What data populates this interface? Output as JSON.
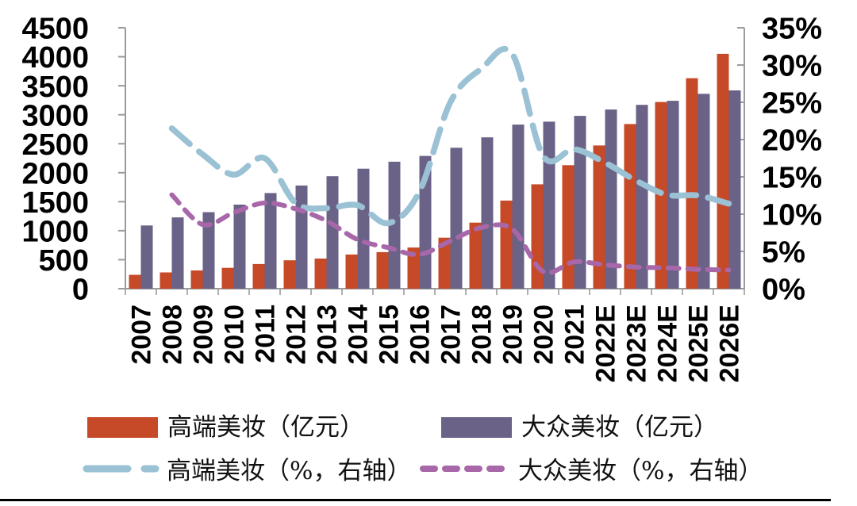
{
  "chart_data": {
    "type": "bar-line-combo",
    "categories": [
      "2007",
      "2008",
      "2009",
      "2010",
      "2011",
      "2012",
      "2013",
      "2014",
      "2015",
      "2016",
      "2017",
      "2018",
      "2019",
      "2020",
      "2021",
      "2022E",
      "2023E",
      "2024E",
      "2025E",
      "2026E"
    ],
    "series": [
      {
        "name": "高端美妆（亿元）",
        "type": "bar",
        "axis": "left",
        "color": "#C64928",
        "values": [
          240,
          280,
          315,
          360,
          425,
          490,
          520,
          590,
          630,
          710,
          880,
          1140,
          1520,
          1800,
          2130,
          2470,
          2840,
          3220,
          3630,
          4050
        ]
      },
      {
        "name": "大众美妆（亿元）",
        "type": "bar",
        "axis": "left",
        "color": "#6A6287",
        "values": [
          1090,
          1230,
          1320,
          1450,
          1650,
          1780,
          1940,
          2070,
          2190,
          2290,
          2430,
          2610,
          2830,
          2880,
          2980,
          3090,
          3170,
          3240,
          3360,
          3420
        ]
      },
      {
        "name": "高端美妆（%，右轴）",
        "type": "line",
        "axis": "right",
        "color": "#9AC1D4",
        "line_style": "long-dash",
        "values": [
          null,
          21.5,
          18,
          15.3,
          17.5,
          11.5,
          10.8,
          11.2,
          8.8,
          13,
          25,
          29.5,
          31.5,
          17.8,
          18.7,
          16.9,
          14.5,
          12.6,
          12.5,
          11.4
        ]
      },
      {
        "name": "大众美妆（%，右轴）",
        "type": "line",
        "axis": "right",
        "color": "#A867A9",
        "line_style": "short-dash",
        "values": [
          null,
          12.6,
          8.6,
          10.2,
          11.5,
          10.7,
          9.1,
          6.6,
          5.5,
          4.6,
          6.4,
          8.2,
          8,
          2.3,
          3.6,
          3.2,
          2.9,
          2.8,
          2.6,
          2.5
        ]
      }
    ],
    "left_axis": {
      "min": 0,
      "max": 4500,
      "step": 500,
      "tick_labels": [
        "0",
        "500",
        "1000",
        "1500",
        "2000",
        "2500",
        "3000",
        "3500",
        "4000",
        "4500"
      ]
    },
    "right_axis": {
      "min": 0,
      "max": 35,
      "step": 5,
      "tick_labels": [
        "0%",
        "5%",
        "10%",
        "15%",
        "20%",
        "25%",
        "30%",
        "35%"
      ]
    },
    "legend_position": "bottom",
    "grid": false
  }
}
